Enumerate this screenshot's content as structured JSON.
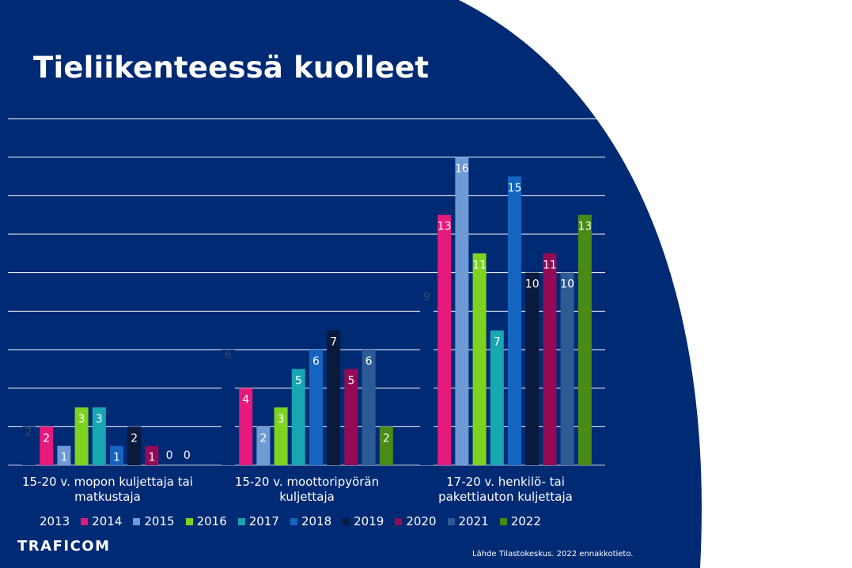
{
  "slide": {
    "title": "Tieliikenteessä kuolleet",
    "logo": "TRAFICOM",
    "source": "Lähde Tilastokeskus. 2022 ennakkotieto.",
    "background": "#002a74"
  },
  "chart_data": {
    "type": "bar",
    "ylim": [
      0,
      18
    ],
    "gridlines": true,
    "legend_position": "bottom",
    "categories": [
      [
        "15-20 v. mopon kuljettaja tai",
        "matkustaja"
      ],
      [
        "15-20 v. moottoripyörän",
        "kuljettaja"
      ],
      [
        "17-20 v. henkilö- tai",
        "pakettiauton kuljettaja"
      ]
    ],
    "series": [
      {
        "name": "2013",
        "color": "#002a74",
        "values": [
          2,
          6,
          9
        ]
      },
      {
        "name": "2014",
        "color": "#e6197c",
        "values": [
          2,
          4,
          13
        ]
      },
      {
        "name": "2015",
        "color": "#6e9ad6",
        "values": [
          1,
          2,
          16
        ]
      },
      {
        "name": "2016",
        "color": "#7ed321",
        "values": [
          3,
          3,
          11
        ]
      },
      {
        "name": "2017",
        "color": "#18a6b3",
        "values": [
          3,
          5,
          7
        ]
      },
      {
        "name": "2018",
        "color": "#1565c0",
        "values": [
          1,
          6,
          15
        ]
      },
      {
        "name": "2019",
        "color": "#0a1a3c",
        "values": [
          2,
          7,
          10
        ]
      },
      {
        "name": "2020",
        "color": "#930a55",
        "values": [
          1,
          5,
          11
        ]
      },
      {
        "name": "2021",
        "color": "#2d5b96",
        "values": [
          0,
          6,
          10
        ]
      },
      {
        "name": "2022",
        "color": "#4a8a18",
        "values": [
          0,
          2,
          13
        ]
      }
    ]
  }
}
